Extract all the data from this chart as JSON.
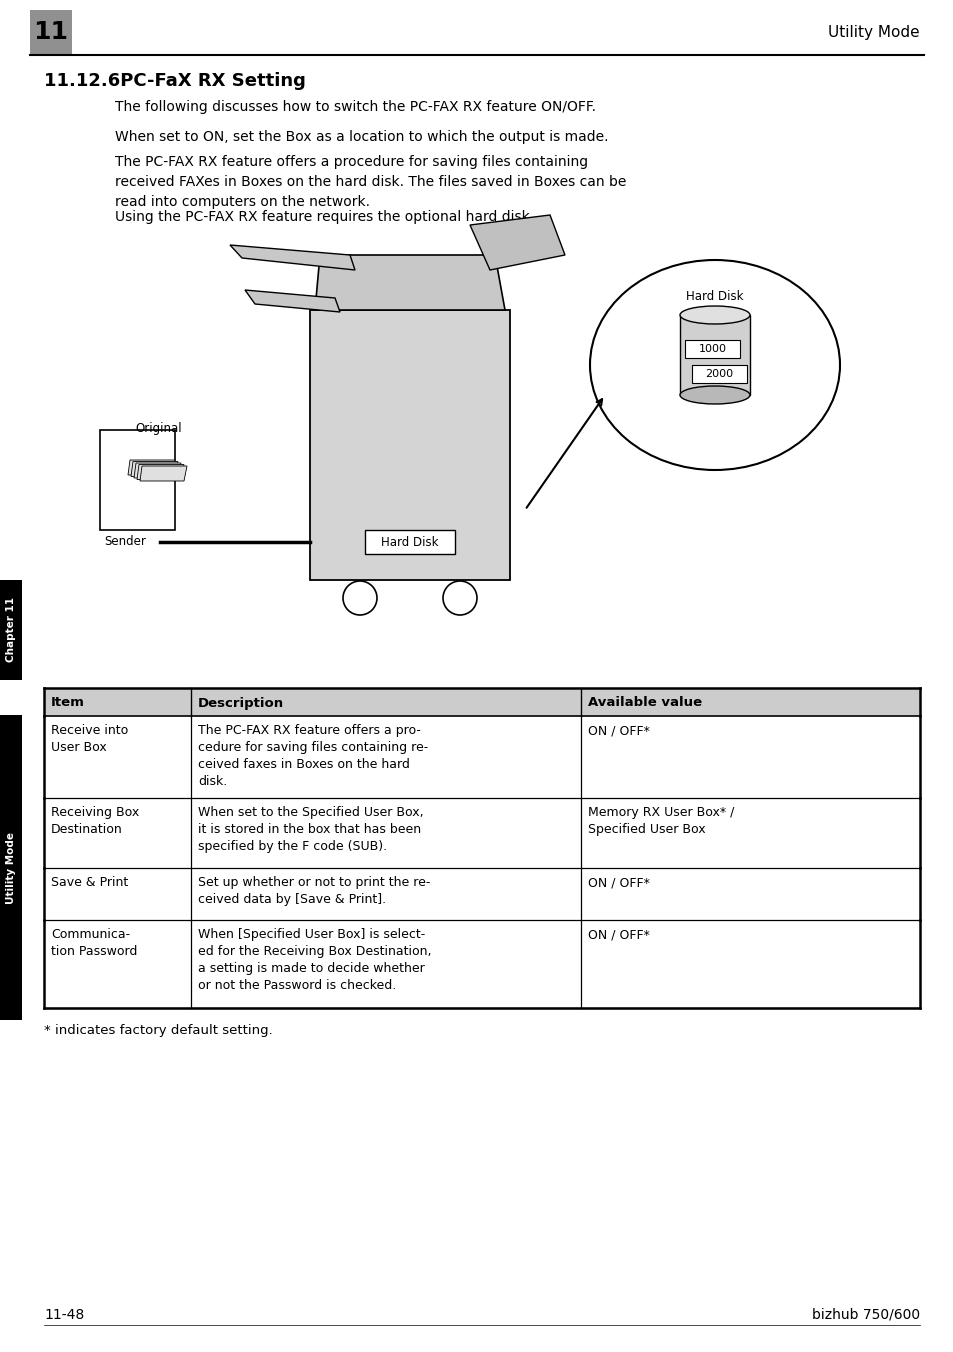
{
  "page_bg": "#ffffff",
  "header_text": "Utility Mode",
  "header_num": "11",
  "header_num_bg": "#909090",
  "section_title": "11.12.6PC-FaX RX Setting",
  "paragraphs": [
    "The following discusses how to switch the PC-FAX RX feature ON/OFF.",
    "When set to ON, set the Box as a location to which the output is made.",
    "The PC-FAX RX feature offers a procedure for saving files containing\nreceived FAXes in Boxes on the hard disk. The files saved in Boxes can be\nread into computers on the network.",
    "Using the PC-FAX RX feature requires the optional hard disk."
  ],
  "table_headers": [
    "Item",
    "Description",
    "Available value"
  ],
  "table_rows": [
    [
      "Receive into\nUser Box",
      "The PC-FAX RX feature offers a pro-\ncedure for saving files containing re-\nceived faxes in Boxes on the hard\ndisk.",
      "ON / OFF*"
    ],
    [
      "Receiving Box\nDestination",
      "When set to the Specified User Box,\nit is stored in the box that has been\nspecified by the F code (SUB).",
      "Memory RX User Box* /\nSpecified User Box"
    ],
    [
      "Save & Print",
      "Set up whether or not to print the re-\nceived data by [Save & Print].",
      "ON / OFF*"
    ],
    [
      "Communica-\ntion Password",
      "When [Specified User Box] is select-\ned for the Receiving Box Destination,\na setting is made to decide whether\nor not the Password is checked.",
      "ON / OFF*"
    ]
  ],
  "footnote": "* indicates factory default setting.",
  "footer_left": "11-48",
  "footer_right": "bizhub 750/600",
  "sidebar_ch_text": "Chapter 11",
  "sidebar_um_text": "Utility Mode",
  "sidebar_bg": "#000000",
  "sidebar_text_color": "#ffffff"
}
